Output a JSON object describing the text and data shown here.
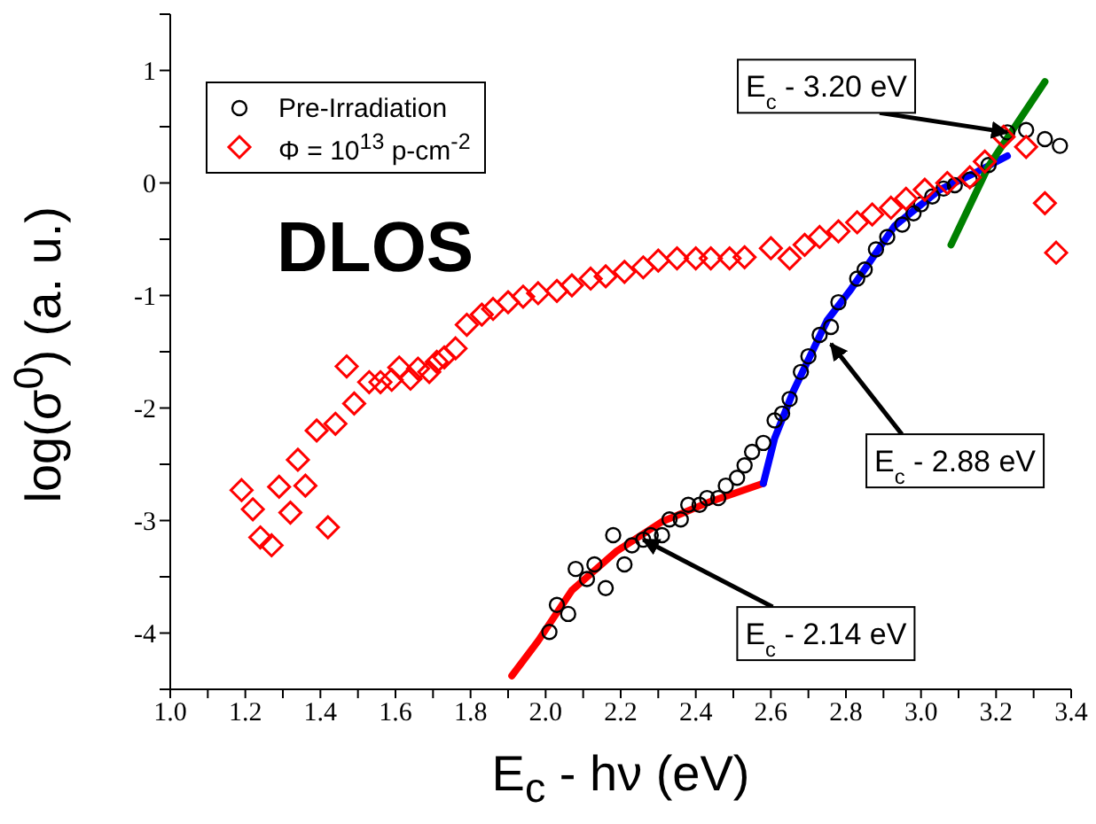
{
  "chart_data": {
    "type": "scatter",
    "xlabel": "E$_{c}$ - hν (eV)",
    "ylabel": "log(σ$^{0}$) (a. u.)",
    "xlim": [
      1.0,
      3.4
    ],
    "ylim": [
      -4.5,
      1.5
    ],
    "xticks": [
      {
        "value": 1.0,
        "label": "1.0"
      },
      {
        "value": 1.1,
        "label": null
      },
      {
        "value": 1.2,
        "label": "1.2"
      },
      {
        "value": 1.3,
        "label": null
      },
      {
        "value": 1.4,
        "label": "1.4"
      },
      {
        "value": 1.5,
        "label": null
      },
      {
        "value": 1.6,
        "label": "1.6"
      },
      {
        "value": 1.7,
        "label": null
      },
      {
        "value": 1.8,
        "label": "1.8"
      },
      {
        "value": 1.9,
        "label": null
      },
      {
        "value": 2.0,
        "label": "2.0"
      },
      {
        "value": 2.1,
        "label": null
      },
      {
        "value": 2.2,
        "label": "2.2"
      },
      {
        "value": 2.3,
        "label": null
      },
      {
        "value": 2.4,
        "label": "2.4"
      },
      {
        "value": 2.5,
        "label": null
      },
      {
        "value": 2.6,
        "label": "2.6"
      },
      {
        "value": 2.7,
        "label": null
      },
      {
        "value": 2.8,
        "label": "2.8"
      },
      {
        "value": 2.9,
        "label": null
      },
      {
        "value": 3.0,
        "label": "3.0"
      },
      {
        "value": 3.1,
        "label": null
      },
      {
        "value": 3.2,
        "label": "3.2"
      },
      {
        "value": 3.3,
        "label": null
      },
      {
        "value": 3.4,
        "label": "3.4"
      }
    ],
    "yticks": [
      {
        "value": -4.5,
        "label": null
      },
      -4,
      {
        "value": -3.5,
        "label": null
      },
      -3,
      {
        "value": -2.5,
        "label": null
      },
      -2,
      {
        "value": -1.5,
        "label": null
      },
      -1,
      {
        "value": -0.5,
        "label": null
      },
      0,
      {
        "value": 0.5,
        "label": null
      },
      1,
      {
        "value": 1.5,
        "label": null
      }
    ],
    "legend": "top left",
    "grid": false,
    "series": [
      {
        "name": "Pre-Irradiation",
        "marker": "circle",
        "color": "#000000",
        "x": [
          2.01,
          2.03,
          2.06,
          2.08,
          2.11,
          2.13,
          2.16,
          2.18,
          2.21,
          2.23,
          2.26,
          2.28,
          2.31,
          2.33,
          2.36,
          2.38,
          2.41,
          2.43,
          2.46,
          2.48,
          2.51,
          2.53,
          2.55,
          2.58,
          2.61,
          2.63,
          2.65,
          2.68,
          2.7,
          2.73,
          2.76,
          2.78,
          2.83,
          2.85,
          2.88,
          2.91,
          2.95,
          2.98,
          3.0,
          3.03,
          3.06,
          3.09,
          3.13,
          3.18,
          3.23,
          3.28,
          3.33,
          3.37
        ],
        "values": [
          -3.99,
          -3.75,
          -3.83,
          -3.43,
          -3.52,
          -3.39,
          -3.6,
          -3.13,
          -3.39,
          -3.22,
          -3.17,
          -3.13,
          -3.13,
          -2.99,
          -2.99,
          -2.86,
          -2.86,
          -2.8,
          -2.8,
          -2.69,
          -2.62,
          -2.51,
          -2.39,
          -2.31,
          -2.11,
          -2.05,
          -1.92,
          -1.68,
          -1.54,
          -1.35,
          -1.28,
          -1.06,
          -0.85,
          -0.77,
          -0.59,
          -0.48,
          -0.37,
          -0.27,
          -0.19,
          -0.12,
          -0.05,
          -0.02,
          0.03,
          0.16,
          0.45,
          0.47,
          0.39,
          0.33
        ]
      },
      {
        "name": "Φ = 10$^{13}$ p-cm$^{-2}$",
        "marker": "diamond",
        "color": "#ff0000",
        "x": [
          1.19,
          1.22,
          1.24,
          1.27,
          1.29,
          1.32,
          1.34,
          1.36,
          1.39,
          1.42,
          1.44,
          1.47,
          1.49,
          1.53,
          1.56,
          1.59,
          1.61,
          1.64,
          1.66,
          1.69,
          1.71,
          1.73,
          1.76,
          1.79,
          1.83,
          1.86,
          1.9,
          1.94,
          1.98,
          2.03,
          2.07,
          2.12,
          2.16,
          2.21,
          2.26,
          2.3,
          2.35,
          2.4,
          2.44,
          2.49,
          2.53,
          2.6,
          2.65,
          2.69,
          2.73,
          2.78,
          2.83,
          2.87,
          2.92,
          2.96,
          3.01,
          3.07,
          3.13,
          3.17,
          3.22,
          3.28,
          3.33,
          3.36
        ],
        "values": [
          -2.73,
          -2.9,
          -3.15,
          -3.22,
          -2.7,
          -2.93,
          -2.46,
          -2.69,
          -2.2,
          -3.06,
          -2.14,
          -1.63,
          -1.96,
          -1.77,
          -1.77,
          -1.75,
          -1.64,
          -1.74,
          -1.65,
          -1.68,
          -1.59,
          -1.55,
          -1.47,
          -1.26,
          -1.17,
          -1.12,
          -1.06,
          -1.01,
          -0.98,
          -0.96,
          -0.91,
          -0.85,
          -0.83,
          -0.79,
          -0.75,
          -0.69,
          -0.67,
          -0.67,
          -0.67,
          -0.67,
          -0.66,
          -0.58,
          -0.67,
          -0.55,
          -0.48,
          -0.43,
          -0.35,
          -0.28,
          -0.22,
          -0.14,
          -0.06,
          0.0,
          0.05,
          0.19,
          0.41,
          0.32,
          -0.18,
          -0.62
        ]
      },
      {
        "type": "line",
        "marker": "none",
        "color": "#ff0000",
        "x": [
          1.91,
          1.98,
          2.07,
          2.19,
          2.31,
          2.44,
          2.58
        ],
        "values": [
          -4.38,
          -4.07,
          -3.62,
          -3.27,
          -3.01,
          -2.83,
          -2.67
        ]
      },
      {
        "type": "line",
        "marker": "none",
        "color": "#0000ff",
        "x": [
          2.58,
          2.61,
          2.66,
          2.75,
          2.81,
          2.93,
          3.05,
          3.15,
          3.23
        ],
        "values": [
          -2.67,
          -2.27,
          -1.85,
          -1.22,
          -0.96,
          -0.38,
          -0.06,
          0.1,
          0.24
        ]
      },
      {
        "type": "line",
        "marker": "none",
        "color": "#008000",
        "x": [
          3.08,
          3.18,
          3.33
        ],
        "values": [
          -0.55,
          0.15,
          0.9
        ]
      }
    ],
    "annotations": [
      "DLOS",
      {
        "text": "E$_{c}$ - 3.20 eV",
        "x": 3.23,
        "y": 0.45
      },
      {
        "text": "E$_{c}$ - 2.88 eV",
        "x": 2.76,
        "y": -1.43
      },
      {
        "text": "E$_{c}$ - 2.14 eV",
        "x": 2.26,
        "y": -3.17
      }
    ]
  }
}
